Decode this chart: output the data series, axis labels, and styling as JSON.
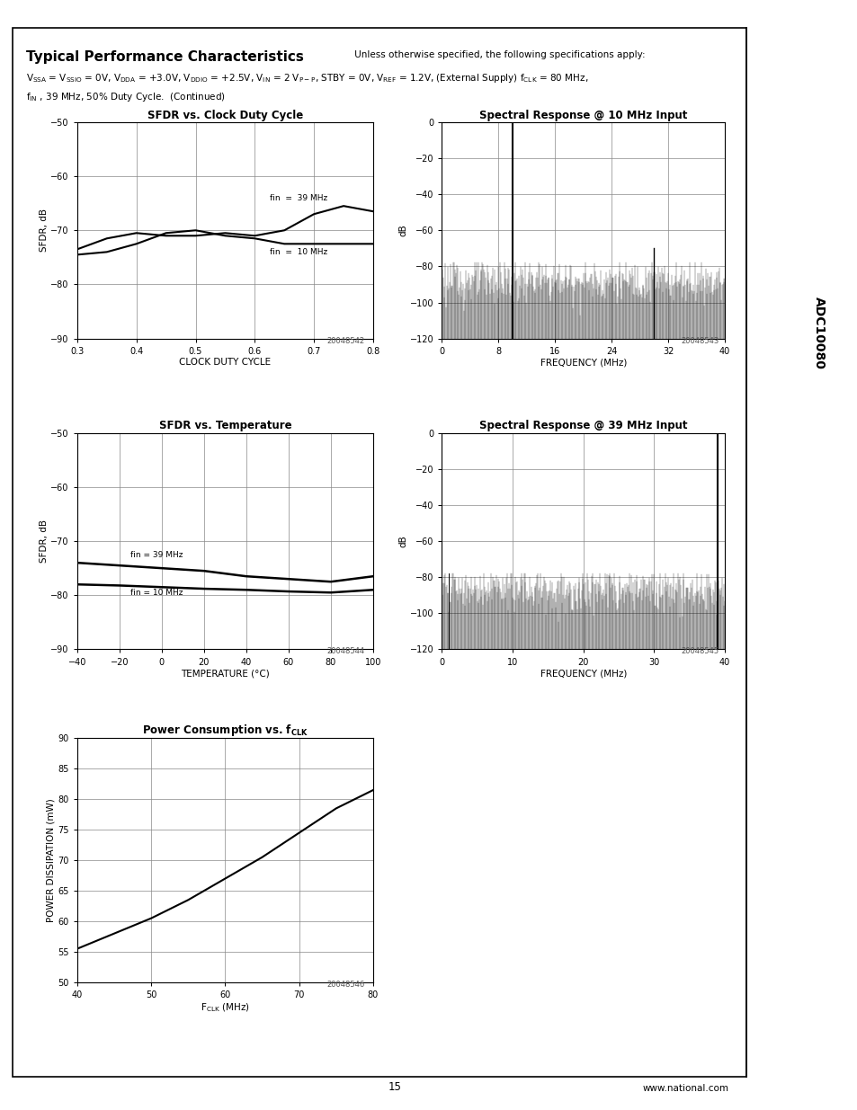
{
  "page_number": "15",
  "website": "www.national.com",
  "sidebar_text": "ADC10080",
  "plot1_title": "SFDR vs. Clock Duty Cycle",
  "plot1_xlabel": "CLOCK DUTY CYCLE",
  "plot1_ylabel": "SFDR, dB",
  "plot1_xlim": [
    0.3,
    0.8
  ],
  "plot1_ylim": [
    -90,
    -50
  ],
  "plot1_yticks": [
    -90,
    -80,
    -70,
    -60,
    -50
  ],
  "plot1_xticks": [
    0.3,
    0.4,
    0.5,
    0.6,
    0.7,
    0.8
  ],
  "plot1_code": "20048542",
  "plot2_title": "Spectral Response @ 10 MHz Input",
  "plot2_xlabel": "FREQUENCY (MHz)",
  "plot2_ylabel": "dB",
  "plot2_xlim": [
    0,
    40
  ],
  "plot2_ylim": [
    -120,
    0
  ],
  "plot2_yticks": [
    0,
    -20,
    -40,
    -60,
    -80,
    -100,
    -120
  ],
  "plot2_xticks": [
    0,
    8,
    16,
    24,
    32,
    40
  ],
  "plot2_code": "20048543",
  "plot3_title": "SFDR vs. Temperature",
  "plot3_xlabel": "TEMPERATURE (°C)",
  "plot3_ylabel": "SFDR, dB",
  "plot3_xlim": [
    -40,
    100
  ],
  "plot3_ylim": [
    -90,
    -50
  ],
  "plot3_yticks": [
    -90,
    -80,
    -70,
    -60,
    -50
  ],
  "plot3_xticks": [
    -40,
    -20,
    0,
    20,
    40,
    60,
    80,
    100
  ],
  "plot3_code": "20048544",
  "plot4_title": "Spectral Response @ 39 MHz Input",
  "plot4_xlabel": "FREQUENCY (MHz)",
  "plot4_ylabel": "dB",
  "plot4_xlim": [
    0,
    40
  ],
  "plot4_ylim": [
    -120,
    0
  ],
  "plot4_yticks": [
    0,
    -20,
    -40,
    -60,
    -80,
    -100,
    -120
  ],
  "plot4_xticks": [
    0,
    10,
    20,
    30,
    40
  ],
  "plot4_code": "20048545",
  "plot5_ylabel": "POWER DISSIPATION (mW)",
  "plot5_xlim": [
    40,
    80
  ],
  "plot5_ylim": [
    50,
    90
  ],
  "plot5_yticks": [
    50,
    55,
    60,
    65,
    70,
    75,
    80,
    85,
    90
  ],
  "plot5_xticks": [
    40,
    50,
    60,
    70,
    80
  ],
  "plot5_code": "20048546"
}
